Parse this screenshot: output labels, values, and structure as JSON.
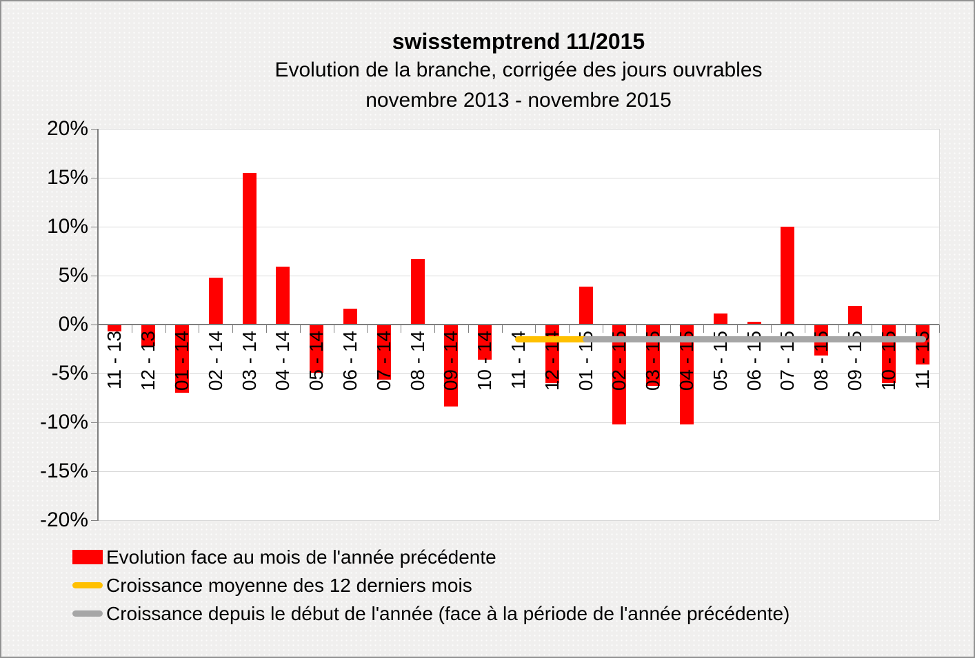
{
  "header": {
    "title": "swisstemptrend 11/2015",
    "subtitle_line1": "Evolution de la branche, corrigée des jours ouvrables",
    "subtitle_line2": "novembre 2013 - novembre 2015"
  },
  "y_axis": {
    "tick_labels": [
      "20%",
      "15%",
      "10%",
      "5%",
      "0%",
      "-5%",
      "-10%",
      "-15%",
      "-20%"
    ],
    "tick_values": [
      20,
      15,
      10,
      5,
      0,
      -5,
      -10,
      -15,
      -20
    ]
  },
  "colors": {
    "bar": "#ff0000",
    "avg12_line": "#ffc000",
    "ytd_line": "#a6a6a6",
    "gridline": "#d8d8d8",
    "axis": "#7f7f7f",
    "plot_background": "#ffffff",
    "page_background": "#f0efee"
  },
  "chart_data": {
    "type": "bar",
    "title": "swisstemptrend 11/2015",
    "subtitle": "Evolution de la branche, corrigée des jours ouvrables novembre 2013 - novembre 2015",
    "ylim": [
      -20,
      20
    ],
    "y_step": 5,
    "grid": true,
    "legend_position": "bottom-left",
    "categories": [
      "11 - 13",
      "12 - 13",
      "01 - 14",
      "02 - 14",
      "03 - 14",
      "04 - 14",
      "05 - 14",
      "06 - 14",
      "07 - 14",
      "08 - 14",
      "09 - 14",
      "10 - 14",
      "11 - 14",
      "12 - 14",
      "01 - 15",
      "02 - 15",
      "03 - 15",
      "04 - 15",
      "05 - 15",
      "06 - 15",
      "07 - 15",
      "08 - 15",
      "09 - 15",
      "10 - 15",
      "11 - 15"
    ],
    "series": [
      {
        "name": "Evolution face au mois de l'année précédente",
        "type": "bar",
        "color": "#ff0000",
        "unit": "%",
        "values": [
          -0.7,
          -2.2,
          -7.0,
          4.8,
          15.5,
          5.9,
          -4.9,
          1.6,
          -5.6,
          6.7,
          -8.4,
          -3.6,
          0.1,
          -6.0,
          3.9,
          -10.2,
          -6.3,
          -10.2,
          1.1,
          0.3,
          10.0,
          -3.2,
          1.9,
          -6.0,
          -4.1
        ]
      },
      {
        "name": "Croissance moyenne des 12 derniers mois",
        "type": "line",
        "color": "#ffc000",
        "unit": "%",
        "from_category": "11 - 14",
        "to_category": "01 - 15",
        "value": -1.5
      },
      {
        "name": "Croissance depuis le début de l'année (face à la période de l'année précédente)",
        "type": "line",
        "color": "#a6a6a6",
        "unit": "%",
        "from_category": "01 - 15",
        "to_category": "11 - 15",
        "value": -1.5
      }
    ]
  },
  "legend": [
    {
      "label": "Evolution face au mois de l'année précédente",
      "marker": "bar",
      "color": "#ff0000"
    },
    {
      "label": "Croissance moyenne des 12 derniers mois",
      "marker": "line",
      "color": "#ffc000"
    },
    {
      "label": "Croissance depuis le début de l'année (face à la période de l'année précédente)",
      "marker": "line",
      "color": "#a6a6a6"
    }
  ]
}
